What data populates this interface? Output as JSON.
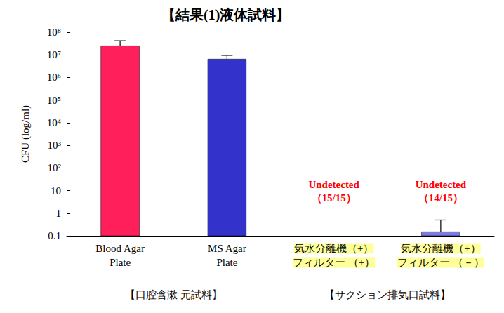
{
  "chart_data": {
    "type": "bar",
    "title": "【結果(1)液体試料】",
    "y_label": "CFU (log/ml)",
    "categories": [
      "Blood Agar\nPlate",
      "MS Agar\nPlate",
      "気水分離機（+）\nフィルター （+）",
      "気水分離機（+）\nフィルター （－）"
    ],
    "values": [
      25000000,
      6500000,
      null,
      0.15
    ],
    "errors": [
      17000000,
      3000000,
      null,
      0.35
    ],
    "colors": [
      "#ff1f5a",
      "#3333cc",
      null,
      "#7b7bdf"
    ],
    "log": "y",
    "ylim": [
      0.1,
      100000000
    ],
    "yticks": [
      0.1,
      1,
      10,
      {
        "value": 100,
        "label": "10²"
      },
      {
        "value": 1000,
        "label": "10³"
      },
      {
        "value": 10000,
        "label": "10⁴"
      },
      {
        "value": 100000,
        "label": "10⁵"
      },
      {
        "value": 1000000,
        "label": "10⁶"
      },
      {
        "value": 10000000,
        "label": "10⁷"
      },
      {
        "value": 100000000,
        "label": "10⁸"
      }
    ],
    "grid": false,
    "annotations": [
      {
        "text": "Undetected\n（15/15）",
        "category": "気水分離機（+）\nフィルター （+）"
      },
      {
        "text": "Undetected\n（14/15）",
        "category": "気水分離機（+）\nフィルター （－）"
      }
    ],
    "groups": [
      {
        "label": "【口腔含漱 元試料】",
        "count": 2
      },
      {
        "label": "【サクション排気口試料】",
        "count": 2
      }
    ]
  }
}
